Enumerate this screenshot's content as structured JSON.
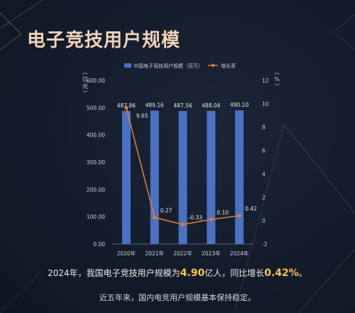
{
  "title": "电子竞技用户规模",
  "chart_data": {
    "type": "bar+line",
    "categories": [
      "2020年",
      "2021年",
      "2022年",
      "2023年",
      "2024年"
    ],
    "series": [
      {
        "name": "中国电子竞技用户规模（百万）",
        "type": "bar",
        "axis": "left",
        "values": [
          487.86,
          489.16,
          487.56,
          488.04,
          490.1
        ],
        "labels": [
          "487.86",
          "489.16",
          "487.56",
          "488.04",
          "490.10"
        ]
      },
      {
        "name": "增长率",
        "type": "line",
        "axis": "right",
        "values": [
          9.65,
          0.27,
          -0.33,
          0.1,
          0.42
        ],
        "labels": [
          "9.65",
          "0.27",
          "-0.33",
          "0.10",
          "0.42"
        ]
      }
    ],
    "y_left": {
      "label": "（亿元）",
      "ylim": [
        0,
        600
      ],
      "ticks": [
        "0.00",
        "100.00",
        "200.00",
        "300.00",
        "400.00",
        "500.00",
        "600.00"
      ]
    },
    "y_right": {
      "label": "（%）",
      "ylim": [
        -2,
        12
      ],
      "ticks": [
        "-2",
        "0",
        "2",
        "4",
        "6",
        "8",
        "10",
        "12"
      ]
    },
    "legend_position": "top",
    "grid": false,
    "colors": {
      "bar": "#4a72c4",
      "line": "#e07b39"
    }
  },
  "caption1": {
    "prefix": "2024年，我国电子竞技用户规模为",
    "value1": "4.90",
    "unit1": "亿人，同比增长",
    "value2": "0.42%",
    "suffix": "。"
  },
  "caption2": "近五年来，国内电竞用户规模基本保持稳定。"
}
